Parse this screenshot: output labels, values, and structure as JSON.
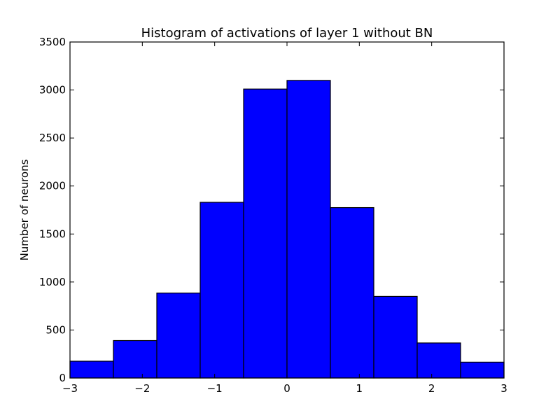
{
  "chart_data": {
    "type": "bar",
    "title": "Histogram of activations of layer 1  without BN",
    "xlabel": "",
    "ylabel": "Number of neurons",
    "xlim": [
      -3,
      3
    ],
    "ylim": [
      0,
      3500
    ],
    "grid": false,
    "legend": "none",
    "bin_edges": [
      -3,
      -2.4,
      -1.8,
      -1.2,
      -0.6,
      0,
      0.6,
      1.2,
      1.8,
      2.4,
      3
    ],
    "values": [
      175,
      390,
      885,
      1830,
      3010,
      3100,
      1775,
      850,
      365,
      165
    ],
    "x_ticks": [
      -3,
      -2,
      -1,
      0,
      1,
      2,
      3
    ],
    "x_tick_labels": [
      "−3",
      "−2",
      "−1",
      "0",
      "1",
      "2",
      "3"
    ],
    "y_ticks": [
      0,
      500,
      1000,
      1500,
      2000,
      2500,
      3000,
      3500
    ],
    "y_tick_labels": [
      "0",
      "500",
      "1000",
      "1500",
      "2000",
      "2500",
      "3000",
      "3500"
    ],
    "bar_color": "#0000ff",
    "edge_color": "#000000"
  }
}
